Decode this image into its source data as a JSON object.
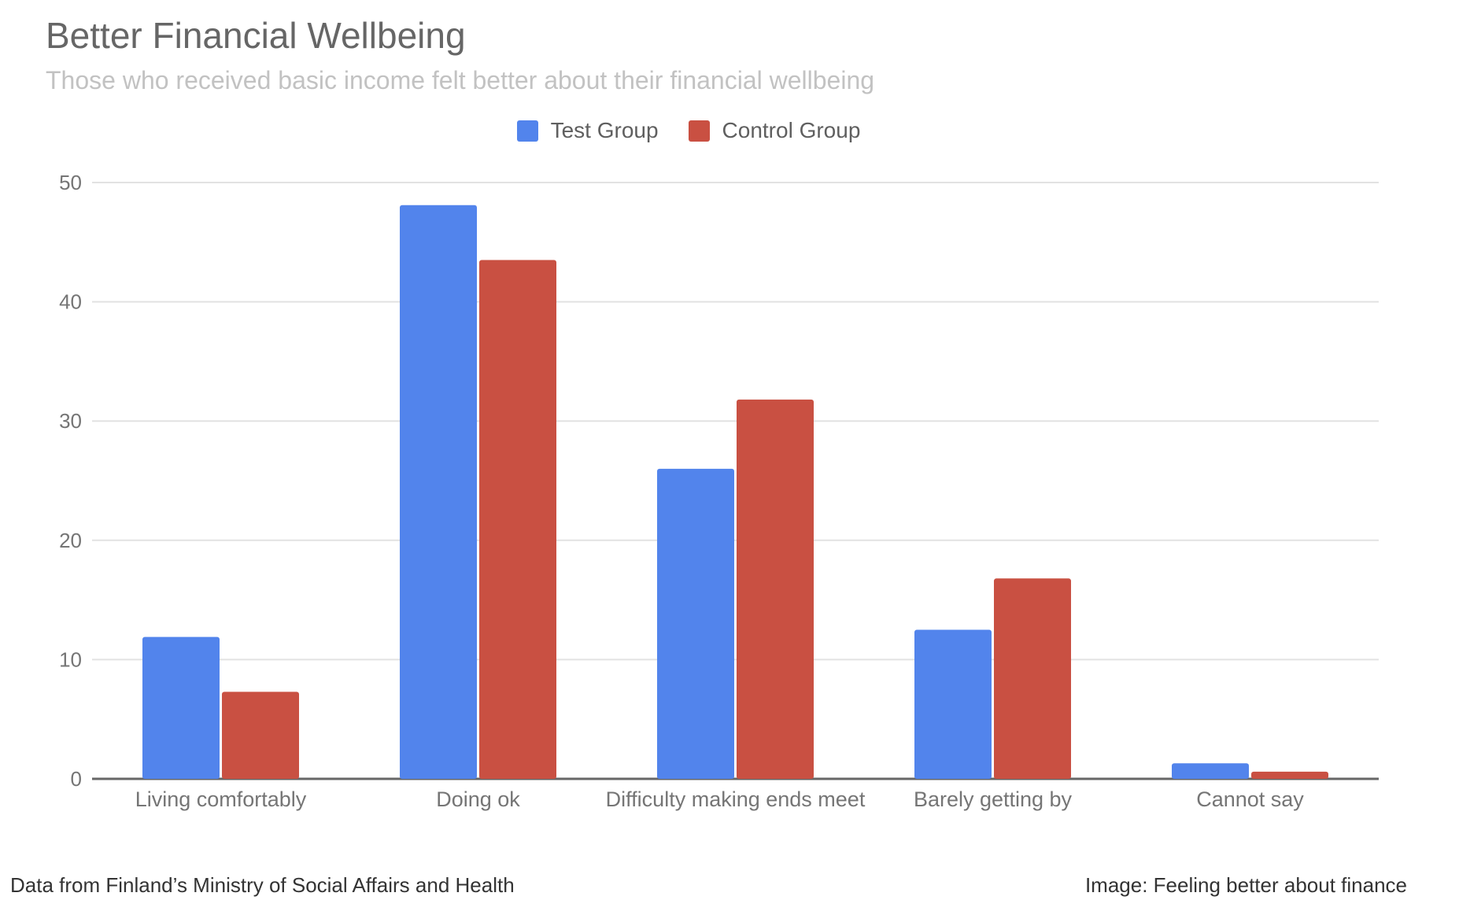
{
  "title": "Better Financial Wellbeing",
  "subtitle": "Those who received basic income felt better about their financial wellbeing",
  "legend": [
    {
      "label": "Test Group",
      "color": "#5284ec"
    },
    {
      "label": "Control Group",
      "color": "#c95042"
    }
  ],
  "footer": {
    "source": "Data from Finland’s Ministry of Social Affairs and Health",
    "image_caption": "Image: Feeling better about finance"
  },
  "colors": {
    "grid": "#e2e2e2",
    "axis": "#666666",
    "tick_text": "#757575"
  },
  "chart_data": {
    "type": "bar",
    "title": "Better Financial Wellbeing",
    "subtitle": "Those who received basic income felt better about their financial wellbeing",
    "categories": [
      "Living comfortably",
      "Doing ok",
      "Difficulty making ends meet",
      "Barely getting by",
      "Cannot say"
    ],
    "series": [
      {
        "name": "Test Group",
        "color": "#5284ec",
        "values": [
          11.9,
          48.1,
          26.0,
          12.5,
          1.3
        ]
      },
      {
        "name": "Control Group",
        "color": "#c95042",
        "values": [
          7.3,
          43.5,
          31.8,
          16.8,
          0.6
        ]
      }
    ],
    "yticks": [
      "0",
      "10",
      "20",
      "30",
      "40",
      "50"
    ],
    "ylim": [
      0,
      50
    ],
    "xlabel": "",
    "ylabel": "",
    "grid": true,
    "legend_position": "top"
  }
}
